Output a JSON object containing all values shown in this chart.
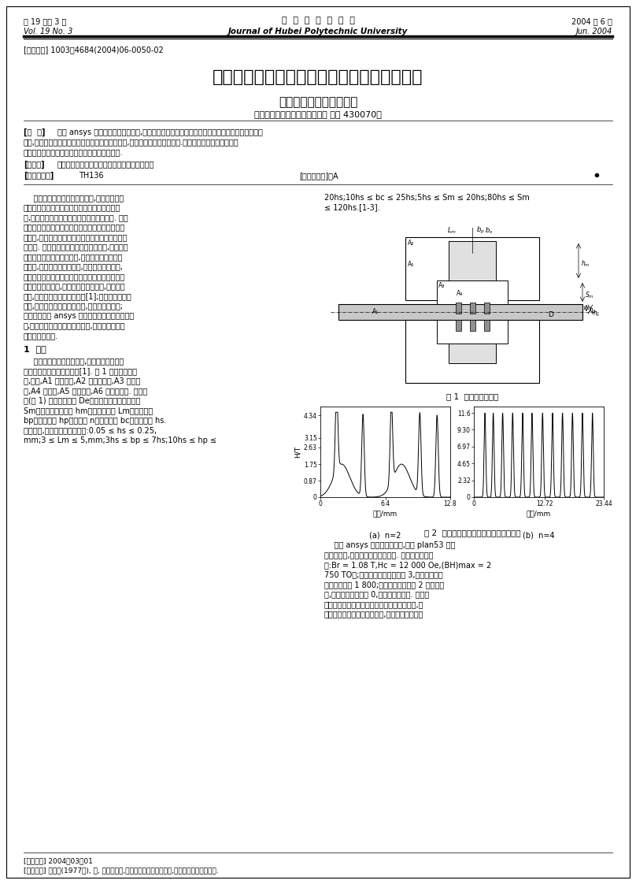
{
  "header_left_cn": "第 19 卷第 3 期",
  "header_left_en": "Vol. 19 No. 3",
  "header_center_cn": "湖  北  工  学  院  学  报",
  "header_center_en": "Journal of Hubei Polytechnic University",
  "header_right_cn": "2004 年 6 月",
  "header_right_en": "Jun. 2004",
  "article_id": "[文章编号] 1003－4684(2004)06-0050-02",
  "title": "矩形极齿磁流体密封装置的磁路参数仿真分析",
  "authors": "王耀华，冯雪梅，刘佐民",
  "affiliation": "（武汉理工大学机电学院，湖北 武汉 430070）",
  "abstract_label": "[摘  要]",
  "abstract_line1": "使用 ansys 建立了磁流体密封模型,基于此模型对各磁路结构参数对密封能力的影响进行了正交",
  "abstract_line2": "模拟,得出了各参数对密封能力指标的线性回归系数,并对回归结果进行了分析.然后根据回归结果和其他的",
  "abstract_line3": "实际工程因素对各参数的设计进行了定性的分析.",
  "keywords_label": "[关键词]",
  "keywords_text": "结构参数；正交模拟；密封能力指标；回归分析",
  "class_label": "[中国分类号]",
  "class_text": "TH136",
  "doc_label": "[文献标识码]：A",
  "col1_lines": [
    "    磁流体密封是一门新兴的技术,是利用铁磁流",
    "体在有梯度的外磁场下能够承受一定的压差的性",
    "能,来达到将密封间隙两边的介质分开的目的. 由于",
    "这项技术所具有的无泄漏、无固体摩擦以及不发热",
    "等优点,被广泛的应用到了真空密封、粉尘密封等各",
    "个领域. 磁流体密封的设计包括很多方面,其中磁路",
    "的设计是其中的重点和难点,也是磁流体密封的一",
    "个特色,对于磁路设计与计算,可以采用理论方法,",
    "但由于磁流体密封的磁路具有介质多、各材料磁导",
    "率非常悬殊的特性,磁漏难以确定的特点,理论计算",
    "很难,而且与实际情况出入较大[1];对于人工的数值",
    "计算,又有各材料尺寸差别悬殊,有限元划分很难;",
    "而笔者采用了 ansys 优先元分析软件进行仿真分",
    "析,有效的利用了数值计算的优点,又避免了人工有",
    "限元划分的缺陷."
  ],
  "section1_title": "1  建模",
  "col1_para2_lines": [
    "    由于整个装置是轴对称的,所以磁路可简化为",
    "过中心轴的截面的平面形式[1]. 图 1 是其结构示意",
    "图,其中,A1 为导磁轴,A2 为永磁材料,A3 为磁极",
    "靴,A4 为空气,A5 为磁流体,A6 为不导磁座. 结构参",
    "数(图 1) 包括转轴直径 De、永磁体和轴之间的间隙",
    "Sm、永磁体径向厚度 hm、永磁体长度 Lm、极齿厚度",
    "bp、极齿高度 hp、极齿数 n、齿槽宽度 bc、密封间隙 hs.",
    "资料表明,各参数应在以下范围:0.05 ≤ hs ≤ 0.25,",
    "mm;3 ≤ Lm ≤ 5,mm;3hs ≤ bp ≤ 7hs;10hs ≤ hp ≤"
  ],
  "col2_top_lines": [
    "20hs;10hs ≤ bc ≤ 25hs;5hs ≤ Sm ≤ 20hs;80hs ≤ Sm",
    "≤ 120hs.[1-3]."
  ],
  "fig1_caption": "图 1  密封原理结构图",
  "fig2_caption": "图 2  磁场强度在所定义路径上的分布曲线",
  "fig2a_label": "(a)  n=2",
  "fig2b_label": "(b)  n=4",
  "plot_a_ylabel": "H/T",
  "plot_a_xlabel": "路径/mm",
  "plot_b_xlabel": "路径/mm",
  "col2_para2_lines": [
    "    使用 ansys 软件建模过程中,选用 plan53 八节",
    "点平面单元,自由度设选取矢量磁势. 永磁材料数据选",
    "为:Br = 1.08 T,Hc = 12 000 Oe,(BH)max = 2",
    "750 TO。;磁流体的相对导磁率取 3,轴和磁极材料",
    "相对导磁率取 1 800;选取永磁铁外径的 2 倍作为边",
    "界,边界处矢量磁势取 0,即矢量平行条件. 然后选",
    "取密封间隙中间位置上的一条直线段作为路径,这",
    "条直线段关于中轴线左右对称,长度为永磁材料长"
  ],
  "footnote1": "[收稿日期] 2004－03－01",
  "footnote2": "[作者简介] 王耀华(1977－), 男, 河南卢氏人,武汉理工大学硕士研究生,研究方向：磁流体密封."
}
